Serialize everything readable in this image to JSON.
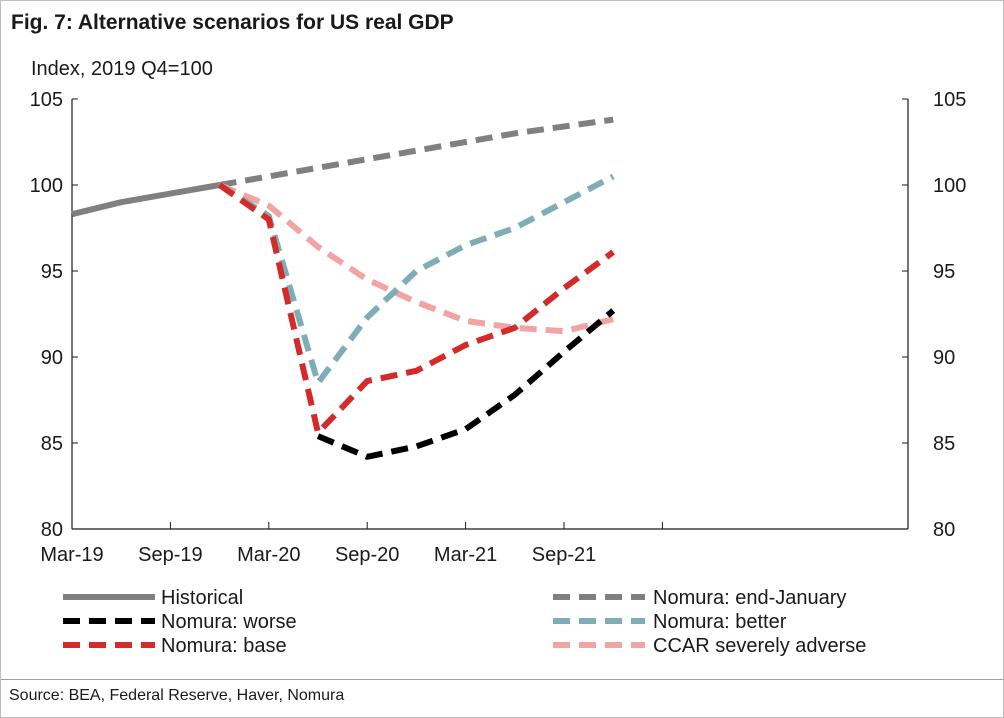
{
  "header": {
    "title": "Fig. 7: Alternative scenarios for US real GDP",
    "ylabel": "Index, 2019 Q4=100"
  },
  "footer": {
    "source": "Source: BEA, Federal Reserve, Haver, Nomura"
  },
  "chart_data": {
    "type": "line",
    "title": "Fig. 7: Alternative scenarios for US real GDP",
    "ylabel": "Index, 2019 Q4=100",
    "xlabel": "",
    "ylim": [
      80,
      105
    ],
    "yticks": [
      80,
      85,
      90,
      95,
      100,
      105
    ],
    "secondary_y_axis": true,
    "x_tick_labels": [
      "Mar-19",
      "Sep-19",
      "Mar-20",
      "Sep-20",
      "Mar-21",
      "Sep-21"
    ],
    "x": [
      "2019 Q1",
      "2019 Q2",
      "2019 Q3",
      "2019 Q4",
      "2020 Q1",
      "2020 Q2",
      "2020 Q3",
      "2020 Q4",
      "2021 Q1",
      "2021 Q2",
      "2021 Q3",
      "2021 Q4"
    ],
    "legend_position": "bottom",
    "series": [
      {
        "name": "Historical",
        "color": "#808080",
        "dash": "solid",
        "values": [
          98.3,
          99.0,
          99.5,
          100.0,
          null,
          null,
          null,
          null,
          null,
          null,
          null,
          null
        ]
      },
      {
        "name": "Nomura: end-January",
        "color": "#808080",
        "dash": "dashed",
        "values": [
          null,
          null,
          null,
          100.0,
          100.5,
          101.0,
          101.5,
          102.0,
          102.5,
          103.0,
          103.4,
          103.8
        ]
      },
      {
        "name": "Nomura: worse",
        "color": "#000000",
        "dash": "dashed",
        "values": [
          null,
          null,
          null,
          null,
          null,
          85.4,
          84.2,
          84.8,
          85.8,
          87.8,
          90.3,
          92.7
        ]
      },
      {
        "name": "Nomura: better",
        "color": "#7fadb5",
        "dash": "dashed",
        "values": [
          null,
          null,
          null,
          100.0,
          98.2,
          88.5,
          92.3,
          95.0,
          96.5,
          97.5,
          99.0,
          100.5
        ]
      },
      {
        "name": "Nomura: base",
        "color": "#d42a2a",
        "dash": "dashed",
        "values": [
          null,
          null,
          null,
          100.0,
          98.0,
          85.6,
          88.6,
          89.2,
          90.7,
          91.7,
          94.0,
          96.1
        ]
      },
      {
        "name": "CCAR severely adverse",
        "color": "#f2a3a3",
        "dash": "dashed",
        "values": [
          null,
          null,
          null,
          100.0,
          98.8,
          96.4,
          94.5,
          93.2,
          92.1,
          91.7,
          91.5,
          92.2
        ]
      }
    ]
  }
}
